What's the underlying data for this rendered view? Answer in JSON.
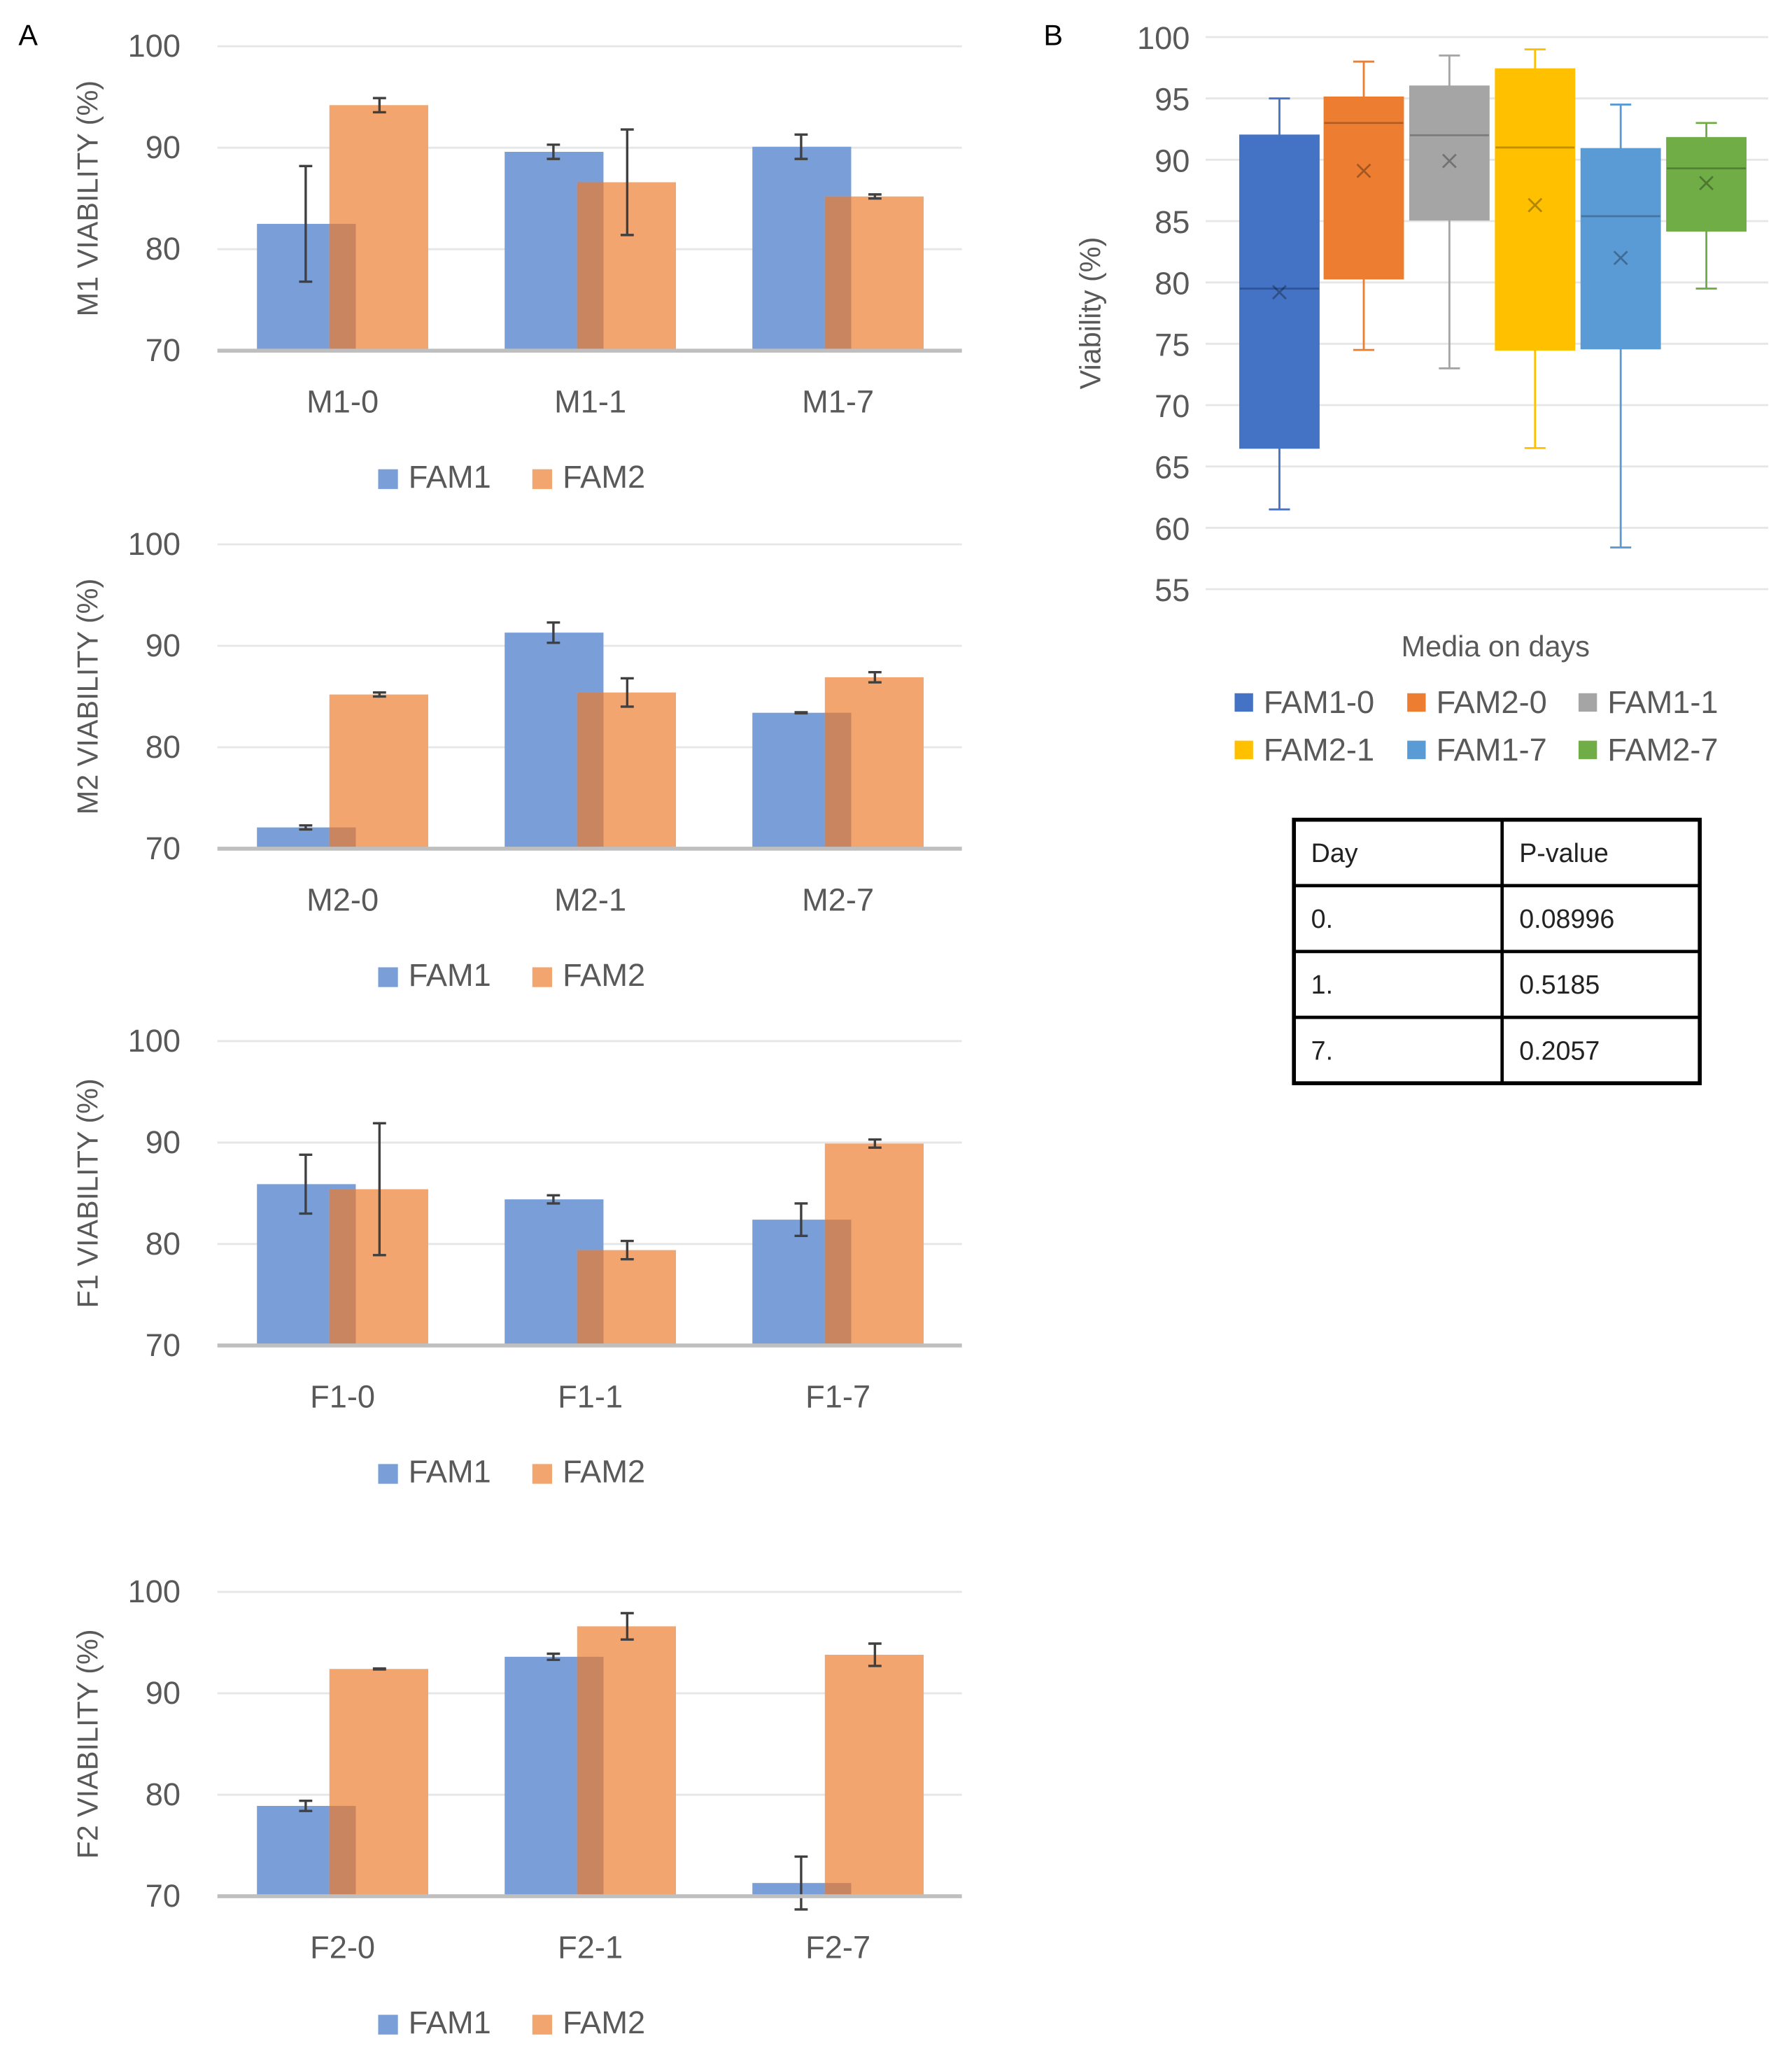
{
  "panels": {
    "a": "A",
    "b": "B"
  },
  "chart_data": [
    {
      "type": "bar",
      "ylabel": "M1 VIABILITY (%)",
      "categories": [
        "M1-0",
        "M1-1",
        "M1-7"
      ],
      "ylim": [
        70,
        100
      ],
      "yticks": [
        70,
        80,
        90,
        100
      ],
      "series": [
        {
          "name": "FAM1",
          "values": [
            82.5,
            89.6,
            90.1
          ],
          "errors": [
            5.7,
            0.7,
            1.2
          ]
        },
        {
          "name": "FAM2",
          "values": [
            94.2,
            86.6,
            85.2
          ],
          "errors": [
            0.7,
            5.2,
            0.2
          ]
        }
      ],
      "legend": "bottom"
    },
    {
      "type": "bar",
      "ylabel": "M2 VIABILITY (%)",
      "categories": [
        "M2-0",
        "M2-1",
        "M2-7"
      ],
      "ylim": [
        70,
        100
      ],
      "yticks": [
        70,
        80,
        90,
        100
      ],
      "series": [
        {
          "name": "FAM1",
          "values": [
            72.1,
            91.3,
            83.4
          ],
          "errors": [
            0.2,
            1.0,
            0.05
          ]
        },
        {
          "name": "FAM2",
          "values": [
            85.2,
            85.4,
            86.9
          ],
          "errors": [
            0.2,
            1.4,
            0.5
          ]
        }
      ],
      "legend": "bottom"
    },
    {
      "type": "bar",
      "ylabel": "F1 VIABILITY (%)",
      "categories": [
        "F1-0",
        "F1-1",
        "F1-7"
      ],
      "ylim": [
        70,
        100
      ],
      "yticks": [
        70,
        80,
        90,
        100
      ],
      "series": [
        {
          "name": "FAM1",
          "values": [
            85.9,
            84.4,
            82.4
          ],
          "errors": [
            2.9,
            0.4,
            1.6
          ]
        },
        {
          "name": "FAM2",
          "values": [
            85.4,
            79.4,
            89.9
          ],
          "errors": [
            6.5,
            0.9,
            0.4
          ]
        }
      ],
      "legend": "bottom"
    },
    {
      "type": "bar",
      "ylabel": "F2 VIABILITY (%)",
      "categories": [
        "F2-0",
        "F2-1",
        "F2-7"
      ],
      "ylim": [
        70,
        100
      ],
      "yticks": [
        70,
        80,
        90,
        100
      ],
      "series": [
        {
          "name": "FAM1",
          "values": [
            78.9,
            93.6,
            71.3
          ],
          "errors": [
            0.5,
            0.3,
            2.6
          ]
        },
        {
          "name": "FAM2",
          "values": [
            92.4,
            96.6,
            93.8
          ],
          "errors": [
            0.05,
            1.3,
            1.1
          ]
        }
      ],
      "legend": "bottom"
    },
    {
      "type": "box",
      "ylabel": "Viability (%)",
      "xlabel": "Media on days",
      "ylim": [
        55,
        100
      ],
      "yticks": [
        55,
        60,
        65,
        70,
        75,
        80,
        85,
        90,
        95,
        100
      ],
      "legend": "bottom",
      "boxes": [
        {
          "name": "FAM1-0",
          "color": "#4472C4",
          "min": 61.5,
          "q1": 66.5,
          "median": 79.5,
          "q3": 92.0,
          "max": 95.0,
          "mean": 79.2
        },
        {
          "name": "FAM2-0",
          "color": "#ED7D31",
          "min": 74.5,
          "q1": 80.3,
          "median": 93.0,
          "q3": 95.1,
          "max": 98.0,
          "mean": 89.1
        },
        {
          "name": "FAM1-1",
          "color": "#A5A5A5",
          "min": 73.0,
          "q1": 85.1,
          "median": 92.0,
          "q3": 96.0,
          "max": 98.5,
          "mean": 89.9
        },
        {
          "name": "FAM2-1",
          "color": "#FFC000",
          "min": 66.5,
          "q1": 74.5,
          "median": 91.0,
          "q3": 97.4,
          "max": 99.0,
          "mean": 86.3
        },
        {
          "name": "FAM1-7",
          "color": "#5B9BD5",
          "min": 58.4,
          "q1": 74.6,
          "median": 85.4,
          "q3": 90.9,
          "max": 94.5,
          "mean": 82.0
        },
        {
          "name": "FAM2-7",
          "color": "#70AD47",
          "min": 79.5,
          "q1": 84.2,
          "median": 89.3,
          "q3": 91.8,
          "max": 93.0,
          "mean": 88.1
        }
      ]
    },
    {
      "type": "table",
      "headers": [
        "Day",
        "P-value"
      ],
      "rows": [
        [
          "0.",
          "0.08996"
        ],
        [
          "1.",
          "0.5185"
        ],
        [
          "7.",
          "0.2057"
        ]
      ]
    }
  ],
  "colors": {
    "fam1": "#7A9FD8",
    "fam2": "#F2A56E",
    "overlap": "#C98460",
    "grid": "#E6E6E6",
    "axis": "#BFBFBF"
  }
}
